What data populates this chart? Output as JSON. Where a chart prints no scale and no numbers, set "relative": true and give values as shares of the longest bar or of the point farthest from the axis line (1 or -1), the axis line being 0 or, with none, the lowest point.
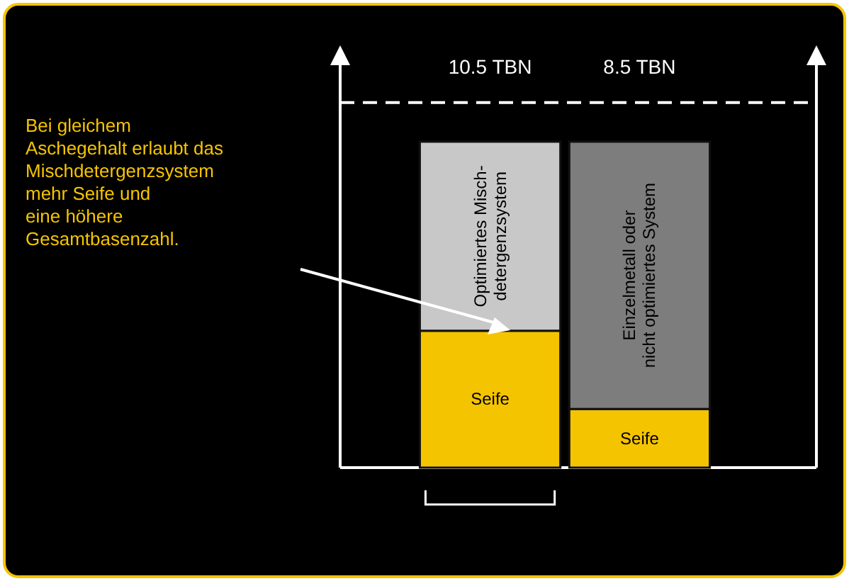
{
  "chart_data": {
    "type": "bar",
    "stacked": true,
    "relative": true,
    "categories": [
      null,
      null
    ],
    "series": [
      {
        "name": "Seife",
        "color": "#f5c400",
        "values": [
          0.42,
          0.18
        ]
      },
      {
        "colors": [
          "#c8c8c8",
          "#7d7d7d"
        ],
        "values": [
          0.58,
          0.82
        ]
      }
    ],
    "ref_lines": [
      {
        "axis": "y",
        "value": 1.12,
        "color": "#ffffff",
        "line_style": "dashed"
      }
    ],
    "annotations": [
      "Bei gleichem\nAschegehalt erlaubt das\nMischdetergenzsystem\nmehr Seife und\neine höhere\nGesamtbasenzahl.",
      "Optimiertes Misch-\ndetergenzsystem",
      "Einzelmetall oder\nnicht optimiertes System",
      "10.5 TBN",
      "8.5 TBN"
    ]
  }
}
